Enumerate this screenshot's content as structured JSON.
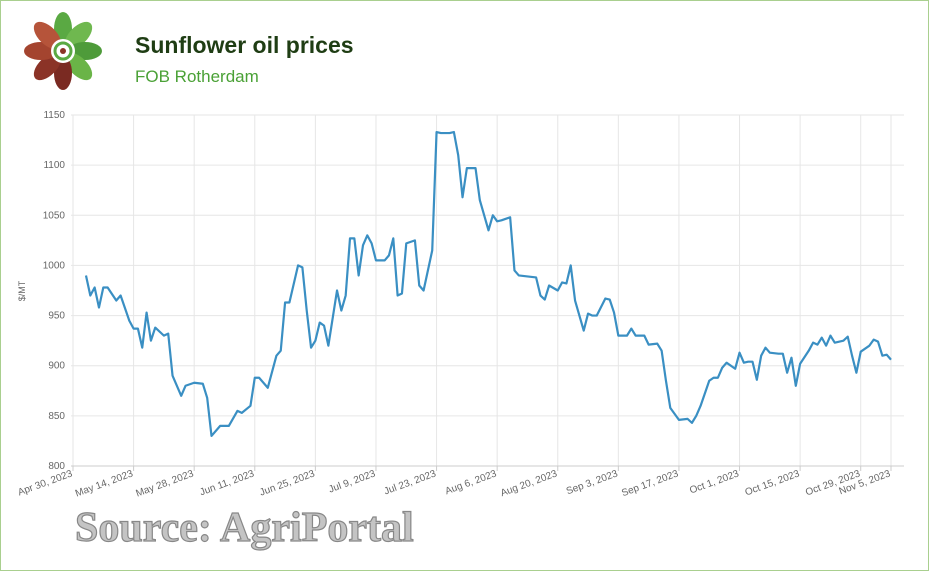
{
  "chart_data": {
    "type": "line",
    "title": "Sunflower oil prices",
    "subtitle": "FOB Rotherdam",
    "y_label": "$/MT",
    "source": "Source: AgriPortal",
    "color": "#3a8fc3",
    "grid": true,
    "xlim": [
      "2023-04-30",
      "2023-11-08"
    ],
    "ylim": [
      800,
      1150
    ],
    "yticks": [
      800,
      850,
      900,
      950,
      1000,
      1050,
      1100,
      1150
    ],
    "xticks": [
      {
        "value": "2023-04-30",
        "label": "Apr 30, 2023"
      },
      {
        "value": "2023-05-14",
        "label": "May 14, 2023"
      },
      {
        "value": "2023-05-28",
        "label": "May 28, 2023"
      },
      {
        "value": "2023-06-11",
        "label": "Jun 11, 2023"
      },
      {
        "value": "2023-06-25",
        "label": "Jun 25, 2023"
      },
      {
        "value": "2023-07-09",
        "label": "Jul 9, 2023"
      },
      {
        "value": "2023-07-23",
        "label": "Jul 23, 2023"
      },
      {
        "value": "2023-08-06",
        "label": "Aug 6, 2023"
      },
      {
        "value": "2023-08-20",
        "label": "Aug 20, 2023"
      },
      {
        "value": "2023-09-03",
        "label": "Sep 3, 2023"
      },
      {
        "value": "2023-09-17",
        "label": "Sep 17, 2023"
      },
      {
        "value": "2023-10-01",
        "label": "Oct 1, 2023"
      },
      {
        "value": "2023-10-15",
        "label": "Oct 15, 2023"
      },
      {
        "value": "2023-10-29",
        "label": "Oct 29, 2023"
      },
      {
        "value": "2023-11-05",
        "label": "Nov 5, 2023"
      }
    ],
    "x": [
      "2023-05-03",
      "2023-05-04",
      "2023-05-05",
      "2023-05-06",
      "2023-05-07",
      "2023-05-08",
      "2023-05-10",
      "2023-05-11",
      "2023-05-13",
      "2023-05-14",
      "2023-05-15",
      "2023-05-16",
      "2023-05-17",
      "2023-05-18",
      "2023-05-19",
      "2023-05-21",
      "2023-05-22",
      "2023-05-23",
      "2023-05-25",
      "2023-05-26",
      "2023-05-28",
      "2023-05-30",
      "2023-05-31",
      "2023-06-01",
      "2023-06-03",
      "2023-06-05",
      "2023-06-07",
      "2023-06-08",
      "2023-06-10",
      "2023-06-11",
      "2023-06-12",
      "2023-06-14",
      "2023-06-16",
      "2023-06-17",
      "2023-06-18",
      "2023-06-19",
      "2023-06-21",
      "2023-06-22",
      "2023-06-23",
      "2023-06-24",
      "2023-06-25",
      "2023-06-26",
      "2023-06-27",
      "2023-06-28",
      "2023-06-30",
      "2023-07-01",
      "2023-07-02",
      "2023-07-03",
      "2023-07-04",
      "2023-07-05",
      "2023-07-06",
      "2023-07-07",
      "2023-07-08",
      "2023-07-09",
      "2023-07-11",
      "2023-07-12",
      "2023-07-13",
      "2023-07-14",
      "2023-07-15",
      "2023-07-16",
      "2023-07-18",
      "2023-07-19",
      "2023-07-20",
      "2023-07-22",
      "2023-07-23",
      "2023-07-24",
      "2023-07-26",
      "2023-07-27",
      "2023-07-28",
      "2023-07-29",
      "2023-07-30",
      "2023-08-01",
      "2023-08-02",
      "2023-08-04",
      "2023-08-05",
      "2023-08-06",
      "2023-08-07",
      "2023-08-09",
      "2023-08-10",
      "2023-08-11",
      "2023-08-13",
      "2023-08-15",
      "2023-08-16",
      "2023-08-17",
      "2023-08-18",
      "2023-08-20",
      "2023-08-21",
      "2023-08-22",
      "2023-08-23",
      "2023-08-24",
      "2023-08-26",
      "2023-08-27",
      "2023-08-28",
      "2023-08-29",
      "2023-08-31",
      "2023-09-01",
      "2023-09-02",
      "2023-09-03",
      "2023-09-05",
      "2023-09-06",
      "2023-09-07",
      "2023-09-09",
      "2023-09-10",
      "2023-09-12",
      "2023-09-13",
      "2023-09-14",
      "2023-09-15",
      "2023-09-17",
      "2023-09-19",
      "2023-09-20",
      "2023-09-21",
      "2023-09-22",
      "2023-09-24",
      "2023-09-25",
      "2023-09-26",
      "2023-09-27",
      "2023-09-28",
      "2023-09-30",
      "2023-10-01",
      "2023-10-02",
      "2023-10-03",
      "2023-10-04",
      "2023-10-05",
      "2023-10-06",
      "2023-10-07",
      "2023-10-08",
      "2023-10-10",
      "2023-10-11",
      "2023-10-12",
      "2023-10-13",
      "2023-10-14",
      "2023-10-15",
      "2023-10-17",
      "2023-10-18",
      "2023-10-19",
      "2023-10-20",
      "2023-10-21",
      "2023-10-22",
      "2023-10-23",
      "2023-10-25",
      "2023-10-26",
      "2023-10-27",
      "2023-10-28",
      "2023-10-29",
      "2023-10-31",
      "2023-11-01",
      "2023-11-02",
      "2023-11-03",
      "2023-11-04",
      "2023-11-05"
    ],
    "values": [
      990,
      970,
      978,
      958,
      978,
      978,
      965,
      970,
      945,
      937,
      937,
      918,
      953,
      925,
      938,
      930,
      932,
      890,
      870,
      880,
      883,
      882,
      868,
      830,
      840,
      840,
      855,
      853,
      860,
      888,
      888,
      878,
      910,
      915,
      963,
      963,
      1000,
      998,
      955,
      918,
      925,
      943,
      940,
      920,
      975,
      955,
      970,
      1027,
      1027,
      990,
      1020,
      1030,
      1022,
      1005,
      1005,
      1010,
      1027,
      970,
      972,
      1022,
      1025,
      980,
      975,
      1015,
      1133,
      1132,
      1132,
      1133,
      1110,
      1068,
      1097,
      1097,
      1065,
      1035,
      1050,
      1044,
      1045,
      1048,
      995,
      990,
      989,
      988,
      970,
      966,
      980,
      975,
      983,
      982,
      1000,
      965,
      935,
      952,
      950,
      950,
      967,
      966,
      953,
      930,
      930,
      937,
      930,
      930,
      921,
      922,
      915,
      885,
      858,
      846,
      847,
      843,
      850,
      860,
      885,
      888,
      888,
      898,
      903,
      897,
      913,
      903,
      904,
      904,
      886,
      910,
      918,
      913,
      912,
      912,
      893,
      908,
      880,
      902,
      915,
      923,
      921,
      928,
      920,
      930,
      923,
      925,
      929,
      910,
      893,
      914,
      920,
      926,
      924,
      910,
      911,
      906
    ]
  }
}
